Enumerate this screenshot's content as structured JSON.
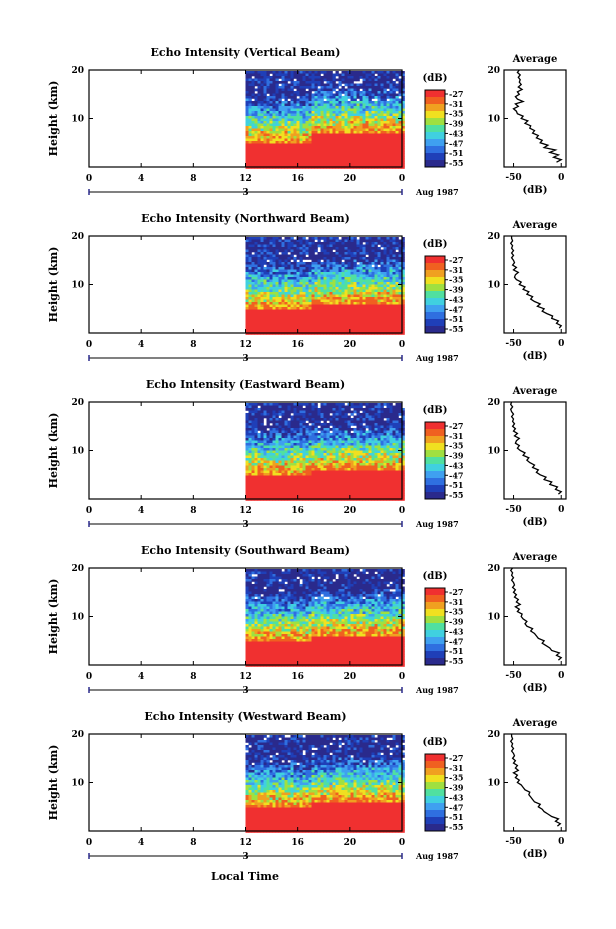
{
  "figure": {
    "xlabel": "Local Time",
    "date_label": "Aug 1987",
    "day_label": "3",
    "colorbar_unit": "(dB)",
    "average_title": "Average",
    "average_xlabel": "(dB)",
    "ylabel": "Height (km)"
  },
  "colors": {
    "scale": [
      "#2a2a8c",
      "#1f3fb8",
      "#2f6fe0",
      "#3fa0f0",
      "#40d0e0",
      "#50e0a0",
      "#a0e040",
      "#f0e020",
      "#f0a020",
      "#f06020",
      "#f03030"
    ]
  },
  "chart_data": [
    {
      "type": "heatmap",
      "title": "Echo Intensity (Vertical Beam)",
      "xlabel": "Local Time",
      "ylabel": "Height (km)",
      "xlim": [
        0,
        24
      ],
      "ylim": [
        0,
        20
      ],
      "xticks": [
        "0",
        "4",
        "8",
        "12",
        "16",
        "20",
        "0"
      ],
      "yticks": [
        "10",
        "20"
      ],
      "data_start_hour": 12,
      "strong_echo_top_km": 5,
      "strong_echo_top_after_17h_km": 7,
      "colorbar": {
        "label": "(dB)",
        "ticks": [
          -27,
          -31,
          -35,
          -39,
          -43,
          -47,
          -51,
          -55
        ]
      },
      "average": {
        "title": "Average",
        "xlabel": "(dB)",
        "xticks": [
          "-50",
          "0"
        ],
        "yticks": [
          "10",
          "20"
        ],
        "xlim": [
          -60,
          5
        ],
        "profile": [
          [
            -5,
            1
          ],
          [
            0,
            1.5
          ],
          [
            -8,
            2
          ],
          [
            -3,
            2.5
          ],
          [
            -12,
            3
          ],
          [
            -6,
            3.5
          ],
          [
            -18,
            4
          ],
          [
            -14,
            4.5
          ],
          [
            -22,
            5
          ],
          [
            -20,
            5.5
          ],
          [
            -26,
            6
          ],
          [
            -24,
            6.5
          ],
          [
            -30,
            7
          ],
          [
            -28,
            7.5
          ],
          [
            -33,
            8
          ],
          [
            -32,
            8.5
          ],
          [
            -38,
            9
          ],
          [
            -35,
            9.5
          ],
          [
            -42,
            10
          ],
          [
            -40,
            10.5
          ],
          [
            -46,
            11
          ],
          [
            -47,
            11.5
          ],
          [
            -50,
            12
          ],
          [
            -45,
            12.5
          ],
          [
            -48,
            13
          ],
          [
            -40,
            13.5
          ],
          [
            -46,
            14
          ],
          [
            -48,
            14.5
          ],
          [
            -44,
            15
          ],
          [
            -46,
            15.5
          ],
          [
            -41,
            16
          ],
          [
            -45,
            16.5
          ],
          [
            -42,
            17
          ],
          [
            -44,
            17.5
          ],
          [
            -43,
            18
          ],
          [
            -45,
            18.5
          ],
          [
            -43,
            19
          ],
          [
            -46,
            19.5
          ],
          [
            -44,
            20
          ]
        ]
      }
    },
    {
      "type": "heatmap",
      "title": "Echo Intensity (Northward Beam)",
      "xlabel": "Local Time",
      "ylabel": "Height (km)",
      "xlim": [
        0,
        24
      ],
      "ylim": [
        0,
        20
      ],
      "xticks": [
        "0",
        "4",
        "8",
        "12",
        "16",
        "20",
        "0"
      ],
      "yticks": [
        "10",
        "20"
      ],
      "data_start_hour": 12,
      "strong_echo_top_km": 5,
      "strong_echo_top_after_17h_km": 6,
      "colorbar": {
        "label": "(dB)",
        "ticks": [
          -27,
          -31,
          -35,
          -39,
          -43,
          -47,
          -51,
          -55
        ]
      },
      "average": {
        "title": "Average",
        "xlabel": "(dB)",
        "xticks": [
          "-50",
          "0"
        ],
        "yticks": [
          "10",
          "20"
        ],
        "xlim": [
          -60,
          5
        ],
        "profile": [
          [
            -2,
            1
          ],
          [
            0,
            1.5
          ],
          [
            -5,
            2
          ],
          [
            -3,
            2.5
          ],
          [
            -10,
            3
          ],
          [
            -9,
            3.5
          ],
          [
            -15,
            4
          ],
          [
            -20,
            4.5
          ],
          [
            -18,
            5
          ],
          [
            -25,
            5.5
          ],
          [
            -22,
            6
          ],
          [
            -28,
            6.5
          ],
          [
            -32,
            7
          ],
          [
            -30,
            7.5
          ],
          [
            -36,
            8
          ],
          [
            -34,
            8.5
          ],
          [
            -40,
            9
          ],
          [
            -38,
            9.5
          ],
          [
            -44,
            10
          ],
          [
            -42,
            10.5
          ],
          [
            -47,
            11
          ],
          [
            -49,
            11.5
          ],
          [
            -48,
            12
          ],
          [
            -45,
            12.5
          ],
          [
            -50,
            13
          ],
          [
            -47,
            13.5
          ],
          [
            -51,
            14
          ],
          [
            -49,
            14.5
          ],
          [
            -50,
            15
          ],
          [
            -52,
            15.5
          ],
          [
            -50,
            16
          ],
          [
            -52,
            16.5
          ],
          [
            -50,
            17
          ],
          [
            -52,
            17.5
          ],
          [
            -51,
            18
          ],
          [
            -53,
            18.5
          ],
          [
            -51,
            19
          ],
          [
            -52,
            19.5
          ],
          [
            -52,
            20
          ]
        ]
      }
    },
    {
      "type": "heatmap",
      "title": "Echo Intensity (Eastward Beam)",
      "xlabel": "Local Time",
      "ylabel": "Height (km)",
      "xlim": [
        0,
        24
      ],
      "ylim": [
        0,
        20
      ],
      "xticks": [
        "0",
        "4",
        "8",
        "12",
        "16",
        "20",
        "0"
      ],
      "yticks": [
        "10",
        "20"
      ],
      "data_start_hour": 12,
      "strong_echo_top_km": 5,
      "strong_echo_top_after_17h_km": 6,
      "colorbar": {
        "label": "(dB)",
        "ticks": [
          -27,
          -31,
          -35,
          -39,
          -43,
          -47,
          -51,
          -55
        ]
      },
      "average": {
        "title": "Average",
        "xlabel": "(dB)",
        "xticks": [
          "-50",
          "0"
        ],
        "yticks": [
          "10",
          "20"
        ],
        "xlim": [
          -60,
          5
        ],
        "profile": [
          [
            -3,
            1
          ],
          [
            0,
            1.5
          ],
          [
            -6,
            2
          ],
          [
            -4,
            2.5
          ],
          [
            -12,
            3
          ],
          [
            -10,
            3.5
          ],
          [
            -18,
            4
          ],
          [
            -16,
            4.5
          ],
          [
            -22,
            5
          ],
          [
            -26,
            5.5
          ],
          [
            -24,
            6
          ],
          [
            -30,
            6.5
          ],
          [
            -28,
            7
          ],
          [
            -33,
            7.5
          ],
          [
            -36,
            8
          ],
          [
            -34,
            8.5
          ],
          [
            -40,
            9
          ],
          [
            -38,
            9.5
          ],
          [
            -43,
            10
          ],
          [
            -46,
            10.5
          ],
          [
            -44,
            11
          ],
          [
            -48,
            11.5
          ],
          [
            -47,
            12
          ],
          [
            -44,
            12.5
          ],
          [
            -49,
            13
          ],
          [
            -46,
            13.5
          ],
          [
            -50,
            14
          ],
          [
            -48,
            14.5
          ],
          [
            -51,
            15
          ],
          [
            -49,
            15.5
          ],
          [
            -51,
            16
          ],
          [
            -50,
            16.5
          ],
          [
            -52,
            17
          ],
          [
            -50,
            17.5
          ],
          [
            -52,
            18
          ],
          [
            -53,
            18.5
          ],
          [
            -51,
            19
          ],
          [
            -53,
            19.5
          ],
          [
            -52,
            20
          ]
        ]
      }
    },
    {
      "type": "heatmap",
      "title": "Echo Intensity (Southward Beam)",
      "xlabel": "Local Time",
      "ylabel": "Height (km)",
      "xlim": [
        0,
        24
      ],
      "ylim": [
        0,
        20
      ],
      "xticks": [
        "0",
        "4",
        "8",
        "12",
        "16",
        "20",
        "0"
      ],
      "yticks": [
        "10",
        "20"
      ],
      "data_start_hour": 12,
      "strong_echo_top_km": 5,
      "strong_echo_top_after_17h_km": 6,
      "colorbar": {
        "label": "(dB)",
        "ticks": [
          -27,
          -31,
          -35,
          -39,
          -43,
          -47,
          -51,
          -55
        ]
      },
      "average": {
        "title": "Average",
        "xlabel": "(dB)",
        "xticks": [
          "-50",
          "0"
        ],
        "yticks": [
          "10",
          "20"
        ],
        "xlim": [
          -60,
          5
        ],
        "profile": [
          [
            -3,
            1
          ],
          [
            0,
            1.5
          ],
          [
            -5,
            2
          ],
          [
            -2,
            2.5
          ],
          [
            -10,
            3
          ],
          [
            -12,
            3.5
          ],
          [
            -16,
            4
          ],
          [
            -20,
            4.5
          ],
          [
            -18,
            5
          ],
          [
            -24,
            5.5
          ],
          [
            -26,
            6
          ],
          [
            -28,
            6.5
          ],
          [
            -32,
            7
          ],
          [
            -30,
            7.5
          ],
          [
            -36,
            8
          ],
          [
            -38,
            8.5
          ],
          [
            -36,
            9
          ],
          [
            -40,
            9.5
          ],
          [
            -42,
            10
          ],
          [
            -41,
            10.5
          ],
          [
            -46,
            11
          ],
          [
            -44,
            11.5
          ],
          [
            -48,
            12
          ],
          [
            -43,
            12.5
          ],
          [
            -47,
            13
          ],
          [
            -45,
            13.5
          ],
          [
            -49,
            14
          ],
          [
            -47,
            14.5
          ],
          [
            -50,
            15
          ],
          [
            -48,
            15.5
          ],
          [
            -51,
            16
          ],
          [
            -49,
            16.5
          ],
          [
            -50,
            17
          ],
          [
            -52,
            17.5
          ],
          [
            -50,
            18
          ],
          [
            -52,
            18.5
          ],
          [
            -51,
            19
          ],
          [
            -53,
            19.5
          ],
          [
            -51,
            20
          ]
        ]
      }
    },
    {
      "type": "heatmap",
      "title": "Echo Intensity (Westward Beam)",
      "xlabel": "Local Time",
      "ylabel": "Height (km)",
      "xlim": [
        0,
        24
      ],
      "ylim": [
        0,
        20
      ],
      "xticks": [
        "0",
        "4",
        "8",
        "12",
        "16",
        "20",
        "0"
      ],
      "yticks": [
        "10",
        "20"
      ],
      "data_start_hour": 12,
      "strong_echo_top_km": 5,
      "strong_echo_top_after_17h_km": 6,
      "colorbar": {
        "label": "(dB)",
        "ticks": [
          -27,
          -31,
          -35,
          -39,
          -43,
          -47,
          -51,
          -55
        ]
      },
      "average": {
        "title": "Average",
        "xlabel": "(dB)",
        "xticks": [
          "-50",
          "0"
        ],
        "yticks": [
          "10",
          "20"
        ],
        "xlim": [
          -60,
          5
        ],
        "profile": [
          [
            -4,
            1
          ],
          [
            -1,
            1.5
          ],
          [
            -6,
            2
          ],
          [
            -3,
            2.5
          ],
          [
            -10,
            3
          ],
          [
            -14,
            3.5
          ],
          [
            -18,
            4
          ],
          [
            -20,
            4.5
          ],
          [
            -24,
            5
          ],
          [
            -22,
            5.5
          ],
          [
            -28,
            6
          ],
          [
            -30,
            6.5
          ],
          [
            -32,
            7
          ],
          [
            -34,
            7.5
          ],
          [
            -33,
            8
          ],
          [
            -38,
            8.5
          ],
          [
            -40,
            9
          ],
          [
            -42,
            9.5
          ],
          [
            -46,
            10
          ],
          [
            -44,
            10.5
          ],
          [
            -48,
            11
          ],
          [
            -46,
            11.5
          ],
          [
            -50,
            12
          ],
          [
            -45,
            12.5
          ],
          [
            -48,
            13
          ],
          [
            -46,
            13.5
          ],
          [
            -50,
            14
          ],
          [
            -48,
            14.5
          ],
          [
            -51,
            15
          ],
          [
            -49,
            15.5
          ],
          [
            -50,
            16
          ],
          [
            -52,
            16.5
          ],
          [
            -50,
            17
          ],
          [
            -52,
            17.5
          ],
          [
            -51,
            18
          ],
          [
            -53,
            18.5
          ],
          [
            -51,
            19
          ],
          [
            -52,
            19.5
          ],
          [
            -52,
            20
          ]
        ]
      }
    }
  ]
}
